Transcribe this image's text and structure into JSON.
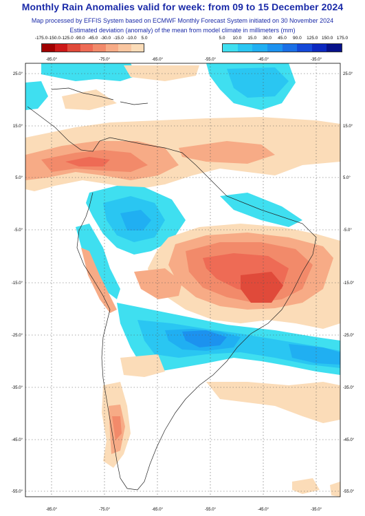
{
  "title": "Monthly Rain Anomalies valid for week: from 09 to 15 December 2024",
  "subtitle_line1": "Map processed by EFFIS System based on ECMWF Monthly Forecast System initiated on 30 November 2024",
  "subtitle_line2": "Estimated deviation (anomaly) of the mean from model climate in millimeters (mm)",
  "legend_dry": {
    "labels": [
      "-175.0",
      "-150.0",
      "-125.0",
      "-90.0",
      "-45.0",
      "-30.0",
      "-15.0",
      "-10.0",
      "5.0"
    ],
    "colors": [
      "#a00000",
      "#cc1818",
      "#e04a3a",
      "#ee6b55",
      "#f28a6a",
      "#f7ab86",
      "#f9c6a0",
      "#fbdcb8"
    ]
  },
  "legend_wet": {
    "labels": [
      "5.0",
      "10.0",
      "15.0",
      "30.0",
      "45.0",
      "90.0",
      "125.0",
      "150.0",
      "175.0"
    ],
    "colors": [
      "#3fdff0",
      "#2ac6f2",
      "#20aff2",
      "#1c92ef",
      "#1a6fe6",
      "#1448d8",
      "#0b28c0",
      "#07128a"
    ]
  },
  "map": {
    "lon_top_labels": [
      "-85.0°",
      "-75.0°",
      "-65.0°",
      "-55.0°",
      "-45.0°",
      "-35.0°"
    ],
    "lon_bottom_labels": [
      "-85.0°",
      "-75.0°",
      "-65.0°",
      "-55.0°",
      "-45.0°",
      "-35.0°"
    ],
    "lat_labels": [
      "25.0°",
      "15.0°",
      "5.0°",
      "-5.0°",
      "-15.0°",
      "-25.0°",
      "-35.0°",
      "-45.0°",
      "-55.0°"
    ]
  }
}
